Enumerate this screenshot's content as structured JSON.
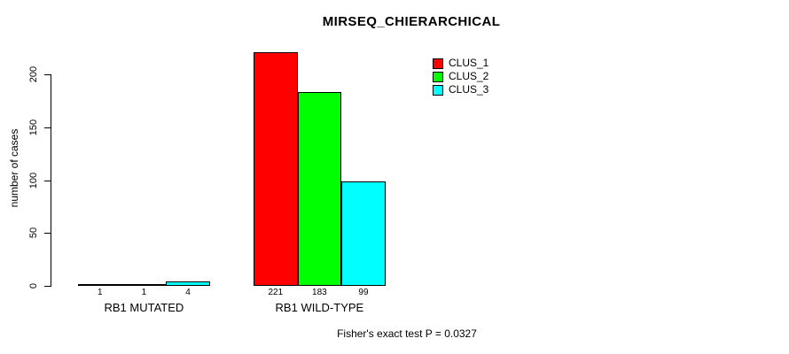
{
  "chart_data": {
    "type": "bar",
    "title": "MIRSEQ_CHIERARCHICAL",
    "ylabel": "number of cases",
    "xlabel": "",
    "categories": [
      "RB1 MUTATED",
      "RB1 WILD-TYPE"
    ],
    "series": [
      {
        "name": "CLUS_1",
        "color": "#ff0000",
        "values": [
          1,
          221
        ]
      },
      {
        "name": "CLUS_2",
        "color": "#00ff00",
        "values": [
          1,
          183
        ]
      },
      {
        "name": "CLUS_3",
        "color": "#00ffff",
        "values": [
          4,
          99
        ]
      }
    ],
    "yticks": [
      0,
      50,
      100,
      150,
      200
    ],
    "ylim": [
      0,
      230
    ],
    "bar_value_labels": [
      [
        "1",
        "1",
        "4"
      ],
      [
        "221",
        "183",
        "99"
      ]
    ],
    "legend_position": "top-right",
    "grid": false,
    "annotation": "Fisher's exact test P = 0.0327",
    "axis_color": "#000000",
    "text_color": "#000000",
    "background": "#ffffff"
  }
}
